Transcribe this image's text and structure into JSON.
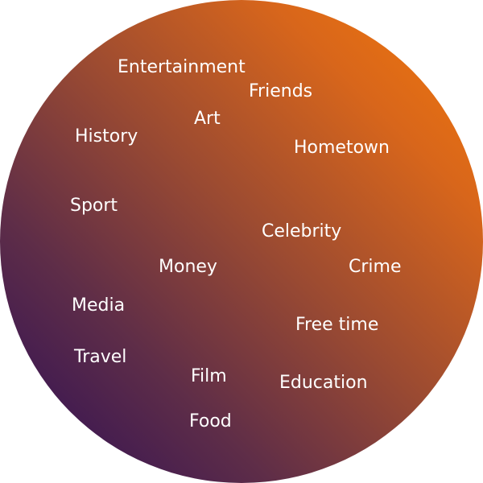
{
  "colors": {
    "gradient_top_right": "#f57a08",
    "gradient_bottom_left": "#2a0c58",
    "text": "#ffffff"
  },
  "topics": [
    "Entertainment",
    "Friends",
    "Art",
    "History",
    "Hometown",
    "Sport",
    "Celebrity",
    "Money",
    "Crime",
    "Media",
    "Free time",
    "Travel",
    "Film",
    "Education",
    "Food"
  ]
}
